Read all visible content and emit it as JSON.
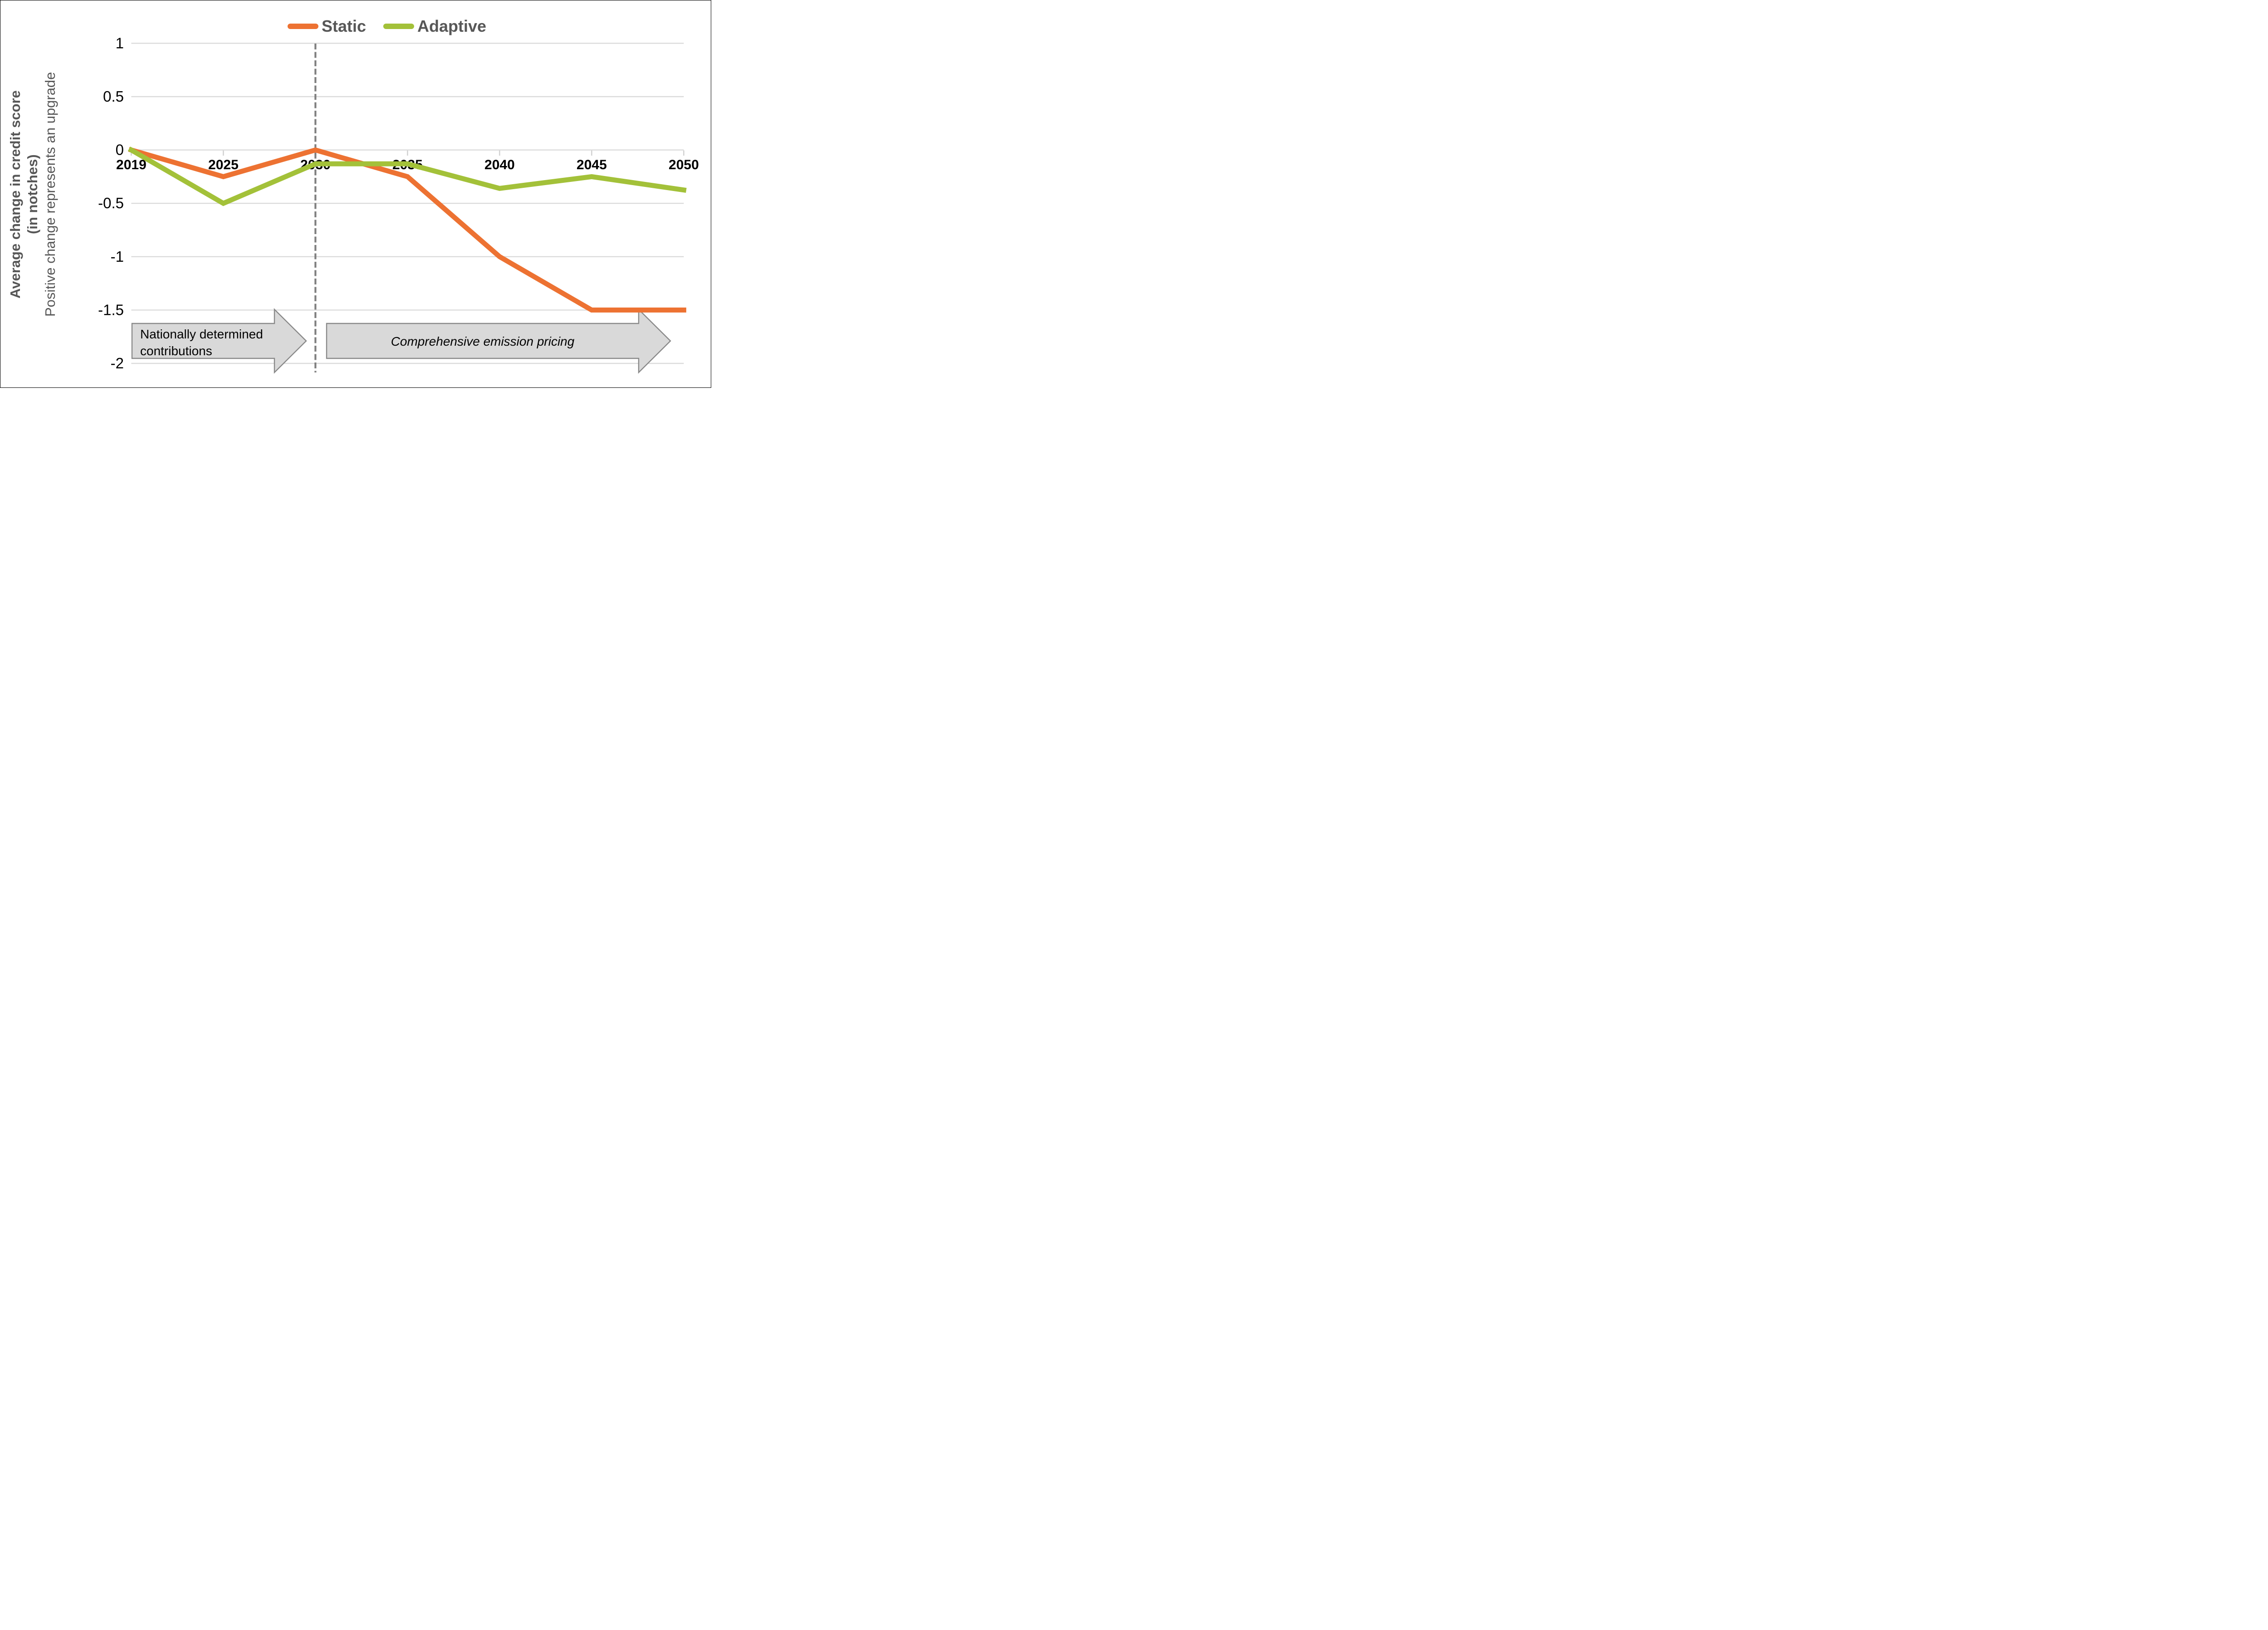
{
  "chart_data": {
    "type": "line",
    "x": [
      2019,
      2025,
      2030,
      2035,
      2040,
      2045,
      2050
    ],
    "x_tick_labels": [
      "2019",
      "2025",
      "2030",
      "2035",
      "2040",
      "2045",
      "2050"
    ],
    "series": [
      {
        "name": "Static",
        "color": "#ED7232",
        "values": [
          0,
          -0.25,
          0,
          -0.25,
          -1.0,
          -1.5,
          -1.5
        ]
      },
      {
        "name": "Adaptive",
        "color": "#A3C139",
        "values": [
          0,
          -0.5,
          -0.13,
          -0.13,
          -0.36,
          -0.25,
          -0.375
        ]
      }
    ],
    "y_ticks": [
      1,
      0.5,
      0,
      -0.5,
      -1,
      -1.5,
      -2
    ],
    "y_tick_labels": [
      "1",
      "0.5",
      "0",
      "-0.5",
      "-1",
      "-1.5",
      "-2"
    ],
    "ylim": [
      -2,
      1
    ],
    "grid": true,
    "legend_position": "top-center",
    "reference_line_x": 2030,
    "annotations": [
      {
        "lines": [
          "Nationally determined",
          "contributions"
        ],
        "italic": false,
        "span": "2019-2030"
      },
      {
        "lines": [
          "Comprehensive emission pricing"
        ],
        "italic": true,
        "span": "2030-2050"
      }
    ]
  },
  "legend": {
    "items": [
      {
        "label": "Static",
        "color": "#ED7232"
      },
      {
        "label": "Adaptive",
        "color": "#A3C139"
      }
    ]
  },
  "axis_titles": {
    "y_bold": "Average change in credit score\n(in notches)",
    "y_sub": "Positive change represents an upgrade"
  },
  "colors": {
    "gridline": "#DBDBDB",
    "tick": "#D2D2D2",
    "reference_line": "#7F7F7F",
    "arrow_fill": "#D9D9D9",
    "arrow_border": "#898989",
    "legend_text": "#575757",
    "axis_text": "#000000"
  }
}
